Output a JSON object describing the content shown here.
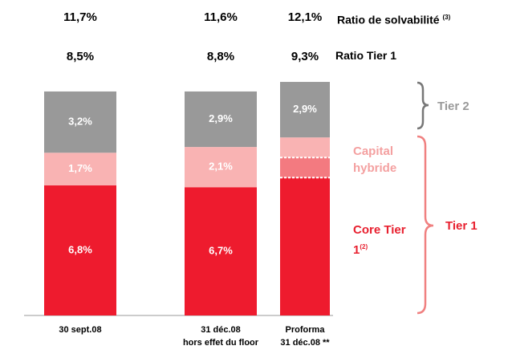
{
  "chart_data": {
    "type": "stacked_bar",
    "categories": [
      "30 sept.08",
      "31 déc.08\nhors effet du floor",
      "Proforma\n31 déc.08 **"
    ],
    "series": [
      {
        "name": "Core Tier 1",
        "note": "(2)",
        "color": "#ee1b2e",
        "values": [
          6.8,
          6.7,
          7.2
        ],
        "value_labels": [
          "6,8%",
          "6,7%",
          null
        ]
      },
      {
        "name": "Capital hybride",
        "color": "#f9b3b3",
        "values": [
          1.7,
          2.1,
          2.1
        ],
        "value_labels": [
          "1,7%",
          "2,1%",
          null
        ]
      },
      {
        "name": "Tier 2",
        "color": "#999999",
        "values": [
          3.2,
          2.9,
          2.9
        ],
        "value_labels": [
          "3,2%",
          "2,9%",
          "2,9%"
        ]
      }
    ],
    "ratios": [
      {
        "name": "Ratio de solvabilité",
        "note": "(3)",
        "values": [
          11.7,
          11.6,
          12.1
        ],
        "value_labels": [
          "11,7%",
          "11,6%",
          "12,1%"
        ]
      },
      {
        "name": "Ratio Tier 1",
        "values": [
          8.5,
          8.8,
          9.3
        ],
        "value_labels": [
          "8,5%",
          "8,8%",
          "9,3%"
        ]
      }
    ],
    "brace_labels": [
      "Tier 2",
      "Tier 1"
    ]
  }
}
